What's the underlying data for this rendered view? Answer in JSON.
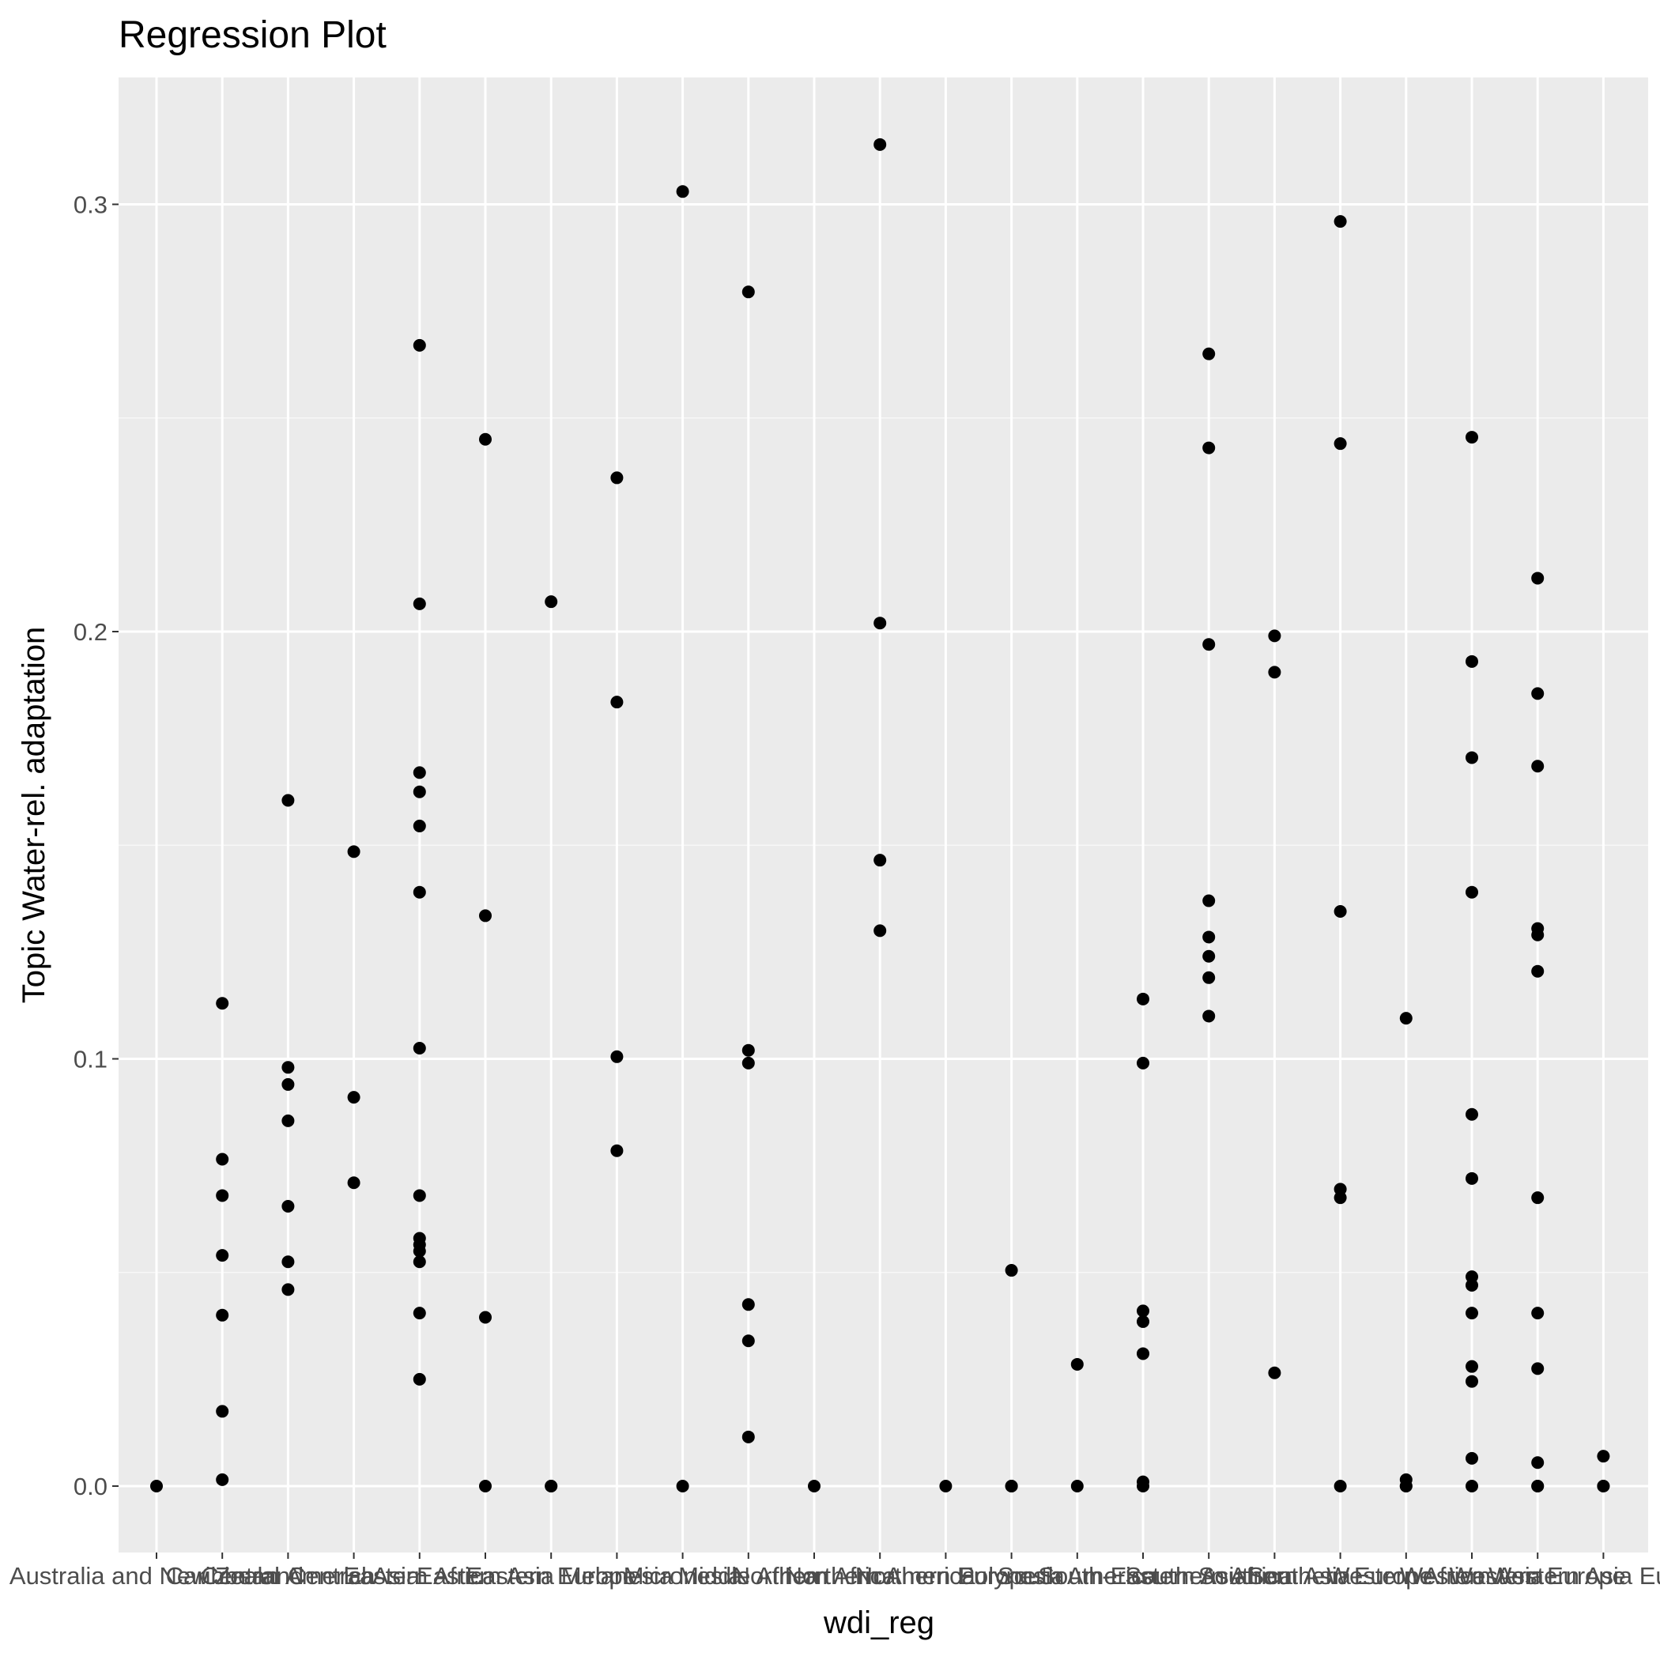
{
  "chart_data": {
    "type": "scatter",
    "title": "Regression Plot",
    "xlabel": "wdi_reg",
    "ylabel": "Topic Water-rel. adaptation",
    "ylim": [
      -0.015,
      0.34
    ],
    "yticks": [
      0.0,
      0.1,
      0.2,
      0.3
    ],
    "ytick_labels": [
      "0.0",
      "0.1",
      "0.2",
      "0.3"
    ],
    "grid": true,
    "categories": [
      "Australia and New Zealand",
      "Caribbean",
      "Central America",
      "Central Asia",
      "Eastern Africa",
      "Eastern Asia",
      "Eastern Europe",
      "Melanesia",
      "Micronesia",
      "Middle Africa",
      "Northern Africa",
      "Northern America",
      "Northern Europe",
      "Polynesia",
      "South America",
      "South-Eastern Asia",
      "Southern Africa",
      "Southern Asia",
      "Southern Europe",
      "Western Africa",
      "Western Asia",
      "Western Europe",
      "Western Asia Europe"
    ],
    "points": [
      [
        0,
        [
          0.0
        ]
      ],
      [
        1,
        [
          0.113,
          0.0765,
          0.068,
          0.054,
          0.04,
          0.0175,
          0.0015
        ]
      ],
      [
        2,
        [
          0.1605,
          0.098,
          0.094,
          0.0855,
          0.0655,
          0.0525,
          0.046
        ]
      ],
      [
        3,
        [
          0.1485,
          0.091,
          0.071
        ]
      ],
      [
        4,
        [
          0.267,
          0.2065,
          0.167,
          0.1625,
          0.1545,
          0.139,
          0.1025,
          0.068,
          0.058,
          0.0565,
          0.055,
          0.0525,
          0.0405,
          0.025
        ]
      ],
      [
        5,
        [
          0.245,
          0.1335,
          0.0395,
          0.0
        ]
      ],
      [
        6,
        [
          0.207,
          0.0,
          0.0
        ]
      ],
      [
        7,
        [
          0.236,
          0.1835,
          0.1005,
          0.0785
        ]
      ],
      [
        8,
        [
          0.303,
          0.0
        ]
      ],
      [
        9,
        [
          0.2795,
          0.102,
          0.099,
          0.0425,
          0.034,
          0.0115
        ]
      ],
      [
        10,
        [
          0.0
        ]
      ],
      [
        11,
        [
          0.314,
          0.202,
          0.1465,
          0.13
        ]
      ],
      [
        12,
        [
          0.0
        ]
      ],
      [
        13,
        [
          0.0505,
          0.0,
          0.0
        ]
      ],
      [
        14,
        [
          0.0285,
          0.0
        ]
      ],
      [
        15,
        [
          0.114,
          0.099,
          0.041,
          0.0385,
          0.031,
          0.001,
          0.0
        ]
      ],
      [
        16,
        [
          0.265,
          0.243,
          0.197,
          0.137,
          0.1285,
          0.124,
          0.119,
          0.11
        ]
      ],
      [
        17,
        [
          0.199,
          0.1905,
          0.0265
        ]
      ],
      [
        18,
        [
          0.296,
          0.244,
          0.1345,
          0.0695,
          0.0675,
          0.0
        ]
      ],
      [
        19,
        [
          0.1095,
          0.0015,
          0.0,
          0.0
        ]
      ],
      [
        20,
        [
          0.2455,
          0.193,
          0.1705,
          0.139,
          0.087,
          0.072,
          0.049,
          0.047,
          0.0405,
          0.028,
          0.0245,
          0.0065,
          0.0
        ]
      ],
      [
        21,
        [
          0.2125,
          0.1855,
          0.1685,
          0.1305,
          0.129,
          0.1205,
          0.0675,
          0.0405,
          0.0275,
          0.0055,
          0.0,
          0.0
        ]
      ],
      [
        22,
        [
          0.007,
          0.0,
          0.0
        ]
      ]
    ]
  }
}
